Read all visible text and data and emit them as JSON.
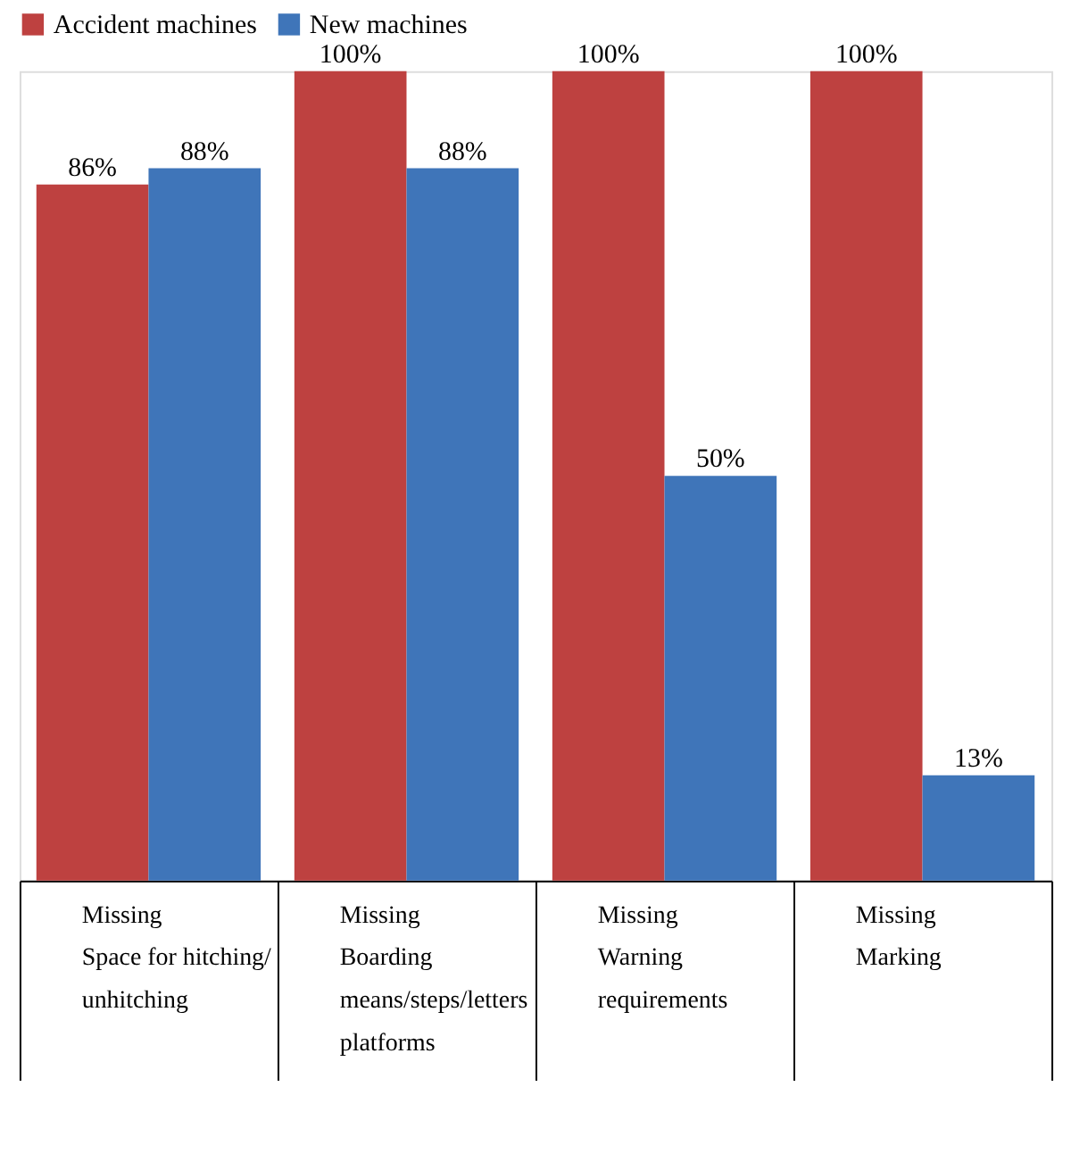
{
  "chart_data": {
    "type": "bar",
    "categories": [
      "Missing\nSpace for hitching/\nunhitching",
      "Missing\nBoarding\nmeans/steps/letters\nplatforms",
      "Missing\nWarning\nrequirements",
      "Missing\nMarking"
    ],
    "series": [
      {
        "name": "Accident machines",
        "color": "#be4140",
        "values": [
          86,
          100,
          100,
          100
        ],
        "value_labels": [
          "86%",
          "100%",
          "100%",
          "100%"
        ]
      },
      {
        "name": "New machines",
        "color": "#3f75b9",
        "values": [
          88,
          88,
          50,
          13
        ],
        "value_labels": [
          "88%",
          "88%",
          "50%",
          "13%"
        ]
      }
    ],
    "legend": "top",
    "grid": false
  }
}
